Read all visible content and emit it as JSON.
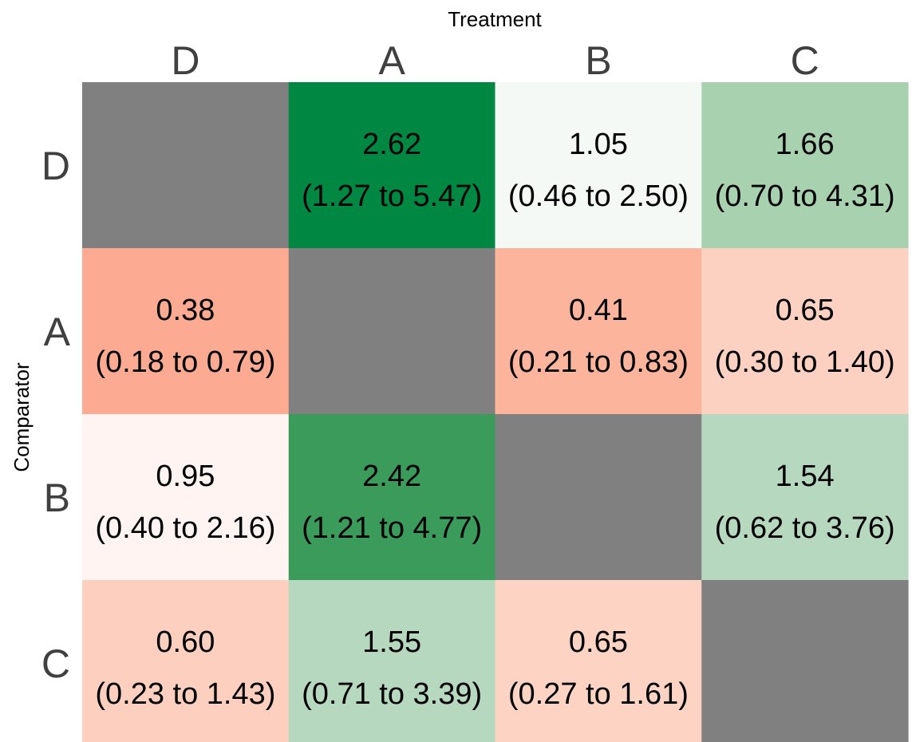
{
  "chart_data": {
    "type": "heatmap",
    "title": "",
    "xlabel": "Treatment",
    "ylabel": "Comparator",
    "x_categories": [
      "D",
      "A",
      "B",
      "C"
    ],
    "y_categories": [
      "D",
      "A",
      "B",
      "C"
    ],
    "diagonal_color": "#808080",
    "cells": [
      [
        null,
        {
          "value": "2.62",
          "ci": "(1.27 to 5.47)",
          "color": "#008741"
        },
        {
          "value": "1.05",
          "ci": "(0.46 to 2.50)",
          "color": "#f5f9f5"
        },
        {
          "value": "1.66",
          "ci": "(0.70 to 4.31)",
          "color": "#a8d1b0"
        }
      ],
      [
        {
          "value": "0.38",
          "ci": "(0.18 to 0.79)",
          "color": "#fcab92"
        },
        null,
        {
          "value": "0.41",
          "ci": "(0.21 to 0.83)",
          "color": "#fcb49c"
        },
        {
          "value": "0.65",
          "ci": "(0.30 to 1.40)",
          "color": "#fdd1c1"
        }
      ],
      [
        {
          "value": "0.95",
          "ci": "(0.40 to 2.16)",
          "color": "#fff4f1"
        },
        {
          "value": "2.42",
          "ci": "(1.21 to 4.77)",
          "color": "#3a9b5a"
        },
        null,
        {
          "value": "1.54",
          "ci": "(0.62 to 3.76)",
          "color": "#b5d8bf"
        }
      ],
      [
        {
          "value": "0.60",
          "ci": "(0.23 to 1.43)",
          "color": "#fdcfbe"
        },
        {
          "value": "1.55",
          "ci": "(0.71 to 3.39)",
          "color": "#b5d8bf"
        },
        {
          "value": "0.65",
          "ci": "(0.27 to 1.61)",
          "color": "#fdd3c3"
        },
        null
      ]
    ]
  }
}
